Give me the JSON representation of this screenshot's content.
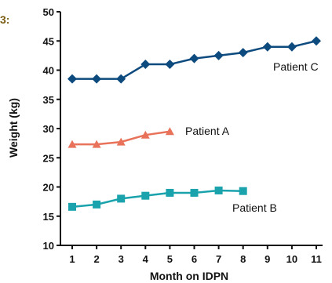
{
  "figure_label": "3:",
  "chart_data": {
    "type": "line",
    "xlabel": "Month on IDPN",
    "ylabel": "Weight (kg)",
    "xlim": [
      1,
      11
    ],
    "ylim": [
      10,
      50
    ],
    "x_ticks": [
      1,
      2,
      3,
      4,
      5,
      6,
      7,
      8,
      9,
      10,
      11
    ],
    "y_ticks": [
      10,
      15,
      20,
      25,
      30,
      35,
      40,
      45,
      50
    ],
    "grid": false,
    "legend": "none (series labeled inline)",
    "series": [
      {
        "name": "Patient C",
        "color": "#0d4a7e",
        "marker": "diamond",
        "x": [
          1,
          2,
          3,
          4,
          5,
          6,
          7,
          8,
          9,
          10,
          11
        ],
        "values": [
          38.5,
          38.5,
          38.5,
          41,
          41,
          42,
          42.5,
          43,
          44,
          44,
          45
        ]
      },
      {
        "name": "Patient A",
        "color": "#e8735a",
        "marker": "triangle",
        "x": [
          1,
          2,
          3,
          4,
          5
        ],
        "values": [
          27.3,
          27.3,
          27.7,
          28.9,
          29.5
        ]
      },
      {
        "name": "Patient B",
        "color": "#1aa3ad",
        "marker": "square",
        "x": [
          1,
          2,
          3,
          4,
          5,
          6,
          7,
          8
        ],
        "values": [
          16.6,
          17,
          18,
          18.5,
          19,
          19,
          19.4,
          19.3
        ]
      }
    ]
  }
}
